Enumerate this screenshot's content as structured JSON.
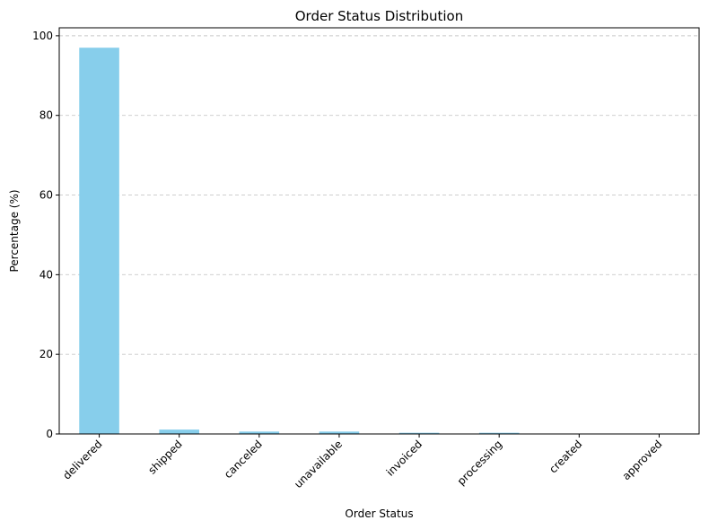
{
  "chart_data": {
    "type": "bar",
    "title": "Order Status Distribution",
    "xlabel": "Order Status",
    "ylabel": "Percentage (%)",
    "categories": [
      "delivered",
      "shipped",
      "canceled",
      "unavailable",
      "invoiced",
      "processing",
      "created",
      "approved"
    ],
    "values": [
      97.0,
      1.1,
      0.6,
      0.6,
      0.3,
      0.3,
      0.01,
      0.01
    ],
    "ylim": [
      0,
      102
    ],
    "yticks": [
      0,
      20,
      40,
      60,
      80,
      100
    ],
    "grid": "y-dashed",
    "bar_color": "#87CEEB",
    "x_tick_rotation": 45
  }
}
